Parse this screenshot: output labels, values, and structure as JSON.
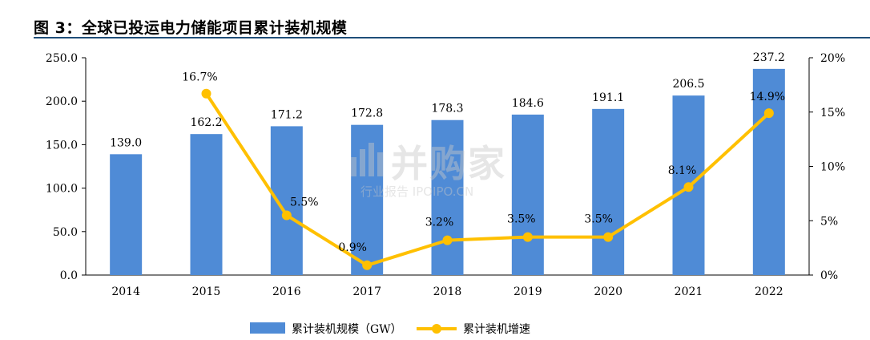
{
  "title": "图 3：全球已投运电力储能项目累计装机规模",
  "watermark": {
    "main": "并购家",
    "sub": "行业报告 IPOIPO.CN"
  },
  "colors": {
    "bar": "#4f8bd6",
    "line": "#ffc000",
    "axis": "#000000"
  },
  "chart_data": {
    "type": "bar+line",
    "categories": [
      "2014",
      "2015",
      "2016",
      "2017",
      "2018",
      "2019",
      "2020",
      "2021",
      "2022"
    ],
    "series": [
      {
        "name": "累计装机规模（GW）",
        "type": "bar",
        "axis": "left",
        "values": [
          139.0,
          162.2,
          171.2,
          172.8,
          178.3,
          184.6,
          191.1,
          206.5,
          237.2
        ],
        "labels": [
          "139.0",
          "162.2",
          "171.2",
          "172.8",
          "178.3",
          "184.6",
          "191.1",
          "206.5",
          "237.2"
        ]
      },
      {
        "name": "累计装机增速",
        "type": "line",
        "axis": "right",
        "values": [
          null,
          16.7,
          5.5,
          0.9,
          3.2,
          3.5,
          3.5,
          8.1,
          14.9
        ],
        "labels": [
          "",
          "16.7%",
          "5.5%",
          "0.9%",
          "3.2%",
          "3.5%",
          "3.5%",
          "8.1%",
          "14.9%"
        ]
      }
    ],
    "y_left": {
      "min": 0,
      "max": 250,
      "ticks": [
        0,
        50,
        100,
        150,
        200,
        250
      ],
      "tick_labels": [
        "0.0",
        "50.0",
        "100.0",
        "150.0",
        "200.0",
        "250.0"
      ]
    },
    "y_right": {
      "min": 0,
      "max": 20,
      "ticks": [
        0,
        5,
        10,
        15,
        20
      ],
      "tick_labels": [
        "0%",
        "5%",
        "10%",
        "15%",
        "20%"
      ]
    },
    "legend_position": "bottom-center",
    "grid": false
  }
}
